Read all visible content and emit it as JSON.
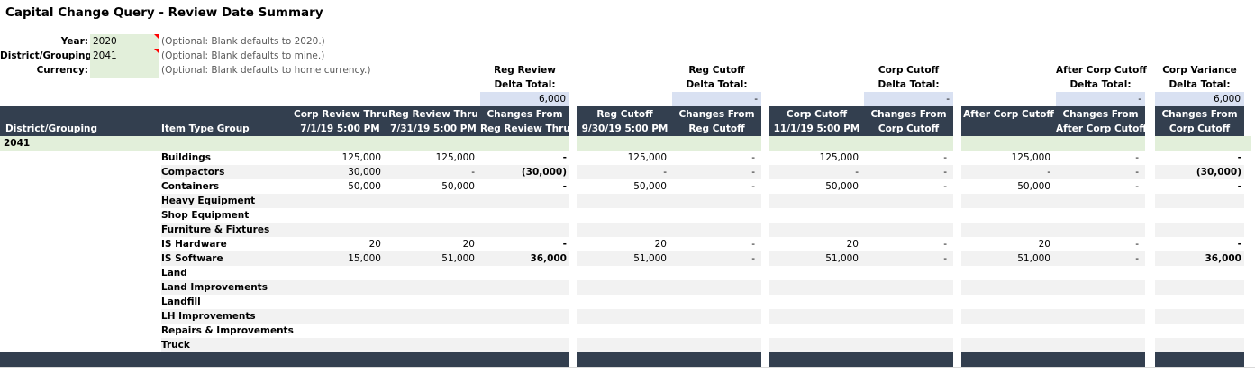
{
  "title": "Capital Change Query - Review Date Summary",
  "params": [
    {
      "label": "Year:",
      "value": "2020",
      "hint": "(Optional: Blank defaults to 2020.)",
      "has_comment": true
    },
    {
      "label": "District/Grouping:",
      "value": "2041",
      "hint": "(Optional: Blank defaults to mine.)",
      "has_comment": true
    },
    {
      "label": "Currency:",
      "value": "",
      "hint": "(Optional: Blank defaults to home currency.)",
      "has_comment": false
    }
  ],
  "deltas": [
    {
      "line1": "Reg Review",
      "line2": "Delta Total:",
      "total": "6,000"
    },
    {
      "line1": "Reg Cutoff",
      "line2": "Delta Total:",
      "total": "-"
    },
    {
      "line1": "Corp Cutoff",
      "line2": "Delta Total:",
      "total": "-"
    },
    {
      "line1": "After Corp Cutoff",
      "line2": "Delta Total:",
      "total": "-"
    },
    {
      "line1": "Corp Variance",
      "line2": "Delta Total:",
      "total": "6,000"
    }
  ],
  "headers": {
    "district": "District/Grouping",
    "item_type": "Item Type Group",
    "cols": [
      {
        "line1": "Corp Review Thru",
        "line2": "7/1/19 5:00 PM"
      },
      {
        "line1": "Reg Review Thru",
        "line2": "7/31/19 5:00 PM"
      },
      {
        "line1": "Changes From",
        "line2": "Reg Review Thru"
      },
      {
        "line1": "Reg Cutoff",
        "line2": "9/30/19 5:00 PM"
      },
      {
        "line1": "Changes From",
        "line2": "Reg Cutoff"
      },
      {
        "line1": "Corp Cutoff",
        "line2": "11/1/19 5:00 PM"
      },
      {
        "line1": "Changes From",
        "line2": "Corp Cutoff"
      },
      {
        "line1": "After Corp Cutoff",
        "line2": ""
      },
      {
        "line1": "Changes From",
        "line2": "After Corp Cutoff"
      },
      {
        "line1": "Changes From",
        "line2": "Corp Cutoff"
      }
    ]
  },
  "group": "2041",
  "rows": [
    {
      "item": "Buildings",
      "values": [
        "125,000",
        "125,000",
        "-",
        "125,000",
        "-",
        "125,000",
        "-",
        "125,000",
        "-",
        "-"
      ]
    },
    {
      "item": "Compactors",
      "values": [
        "30,000",
        "-",
        "(30,000)",
        "-",
        "-",
        "-",
        "-",
        "-",
        "-",
        "(30,000)"
      ]
    },
    {
      "item": "Containers",
      "values": [
        "50,000",
        "50,000",
        "-",
        "50,000",
        "-",
        "50,000",
        "-",
        "50,000",
        "-",
        "-"
      ]
    },
    {
      "item": "Heavy Equipment",
      "values": [
        "",
        "",
        "",
        "",
        "",
        "",
        "",
        "",
        "",
        ""
      ]
    },
    {
      "item": "Shop Equipment",
      "values": [
        "",
        "",
        "",
        "",
        "",
        "",
        "",
        "",
        "",
        ""
      ]
    },
    {
      "item": "Furniture & Fixtures",
      "values": [
        "",
        "",
        "",
        "",
        "",
        "",
        "",
        "",
        "",
        ""
      ]
    },
    {
      "item": "IS Hardware",
      "values": [
        "20",
        "20",
        "-",
        "20",
        "-",
        "20",
        "-",
        "20",
        "-",
        "-"
      ]
    },
    {
      "item": "IS Software",
      "values": [
        "15,000",
        "51,000",
        "36,000",
        "51,000",
        "-",
        "51,000",
        "-",
        "51,000",
        "-",
        "36,000"
      ]
    },
    {
      "item": "Land",
      "values": [
        "",
        "",
        "",
        "",
        "",
        "",
        "",
        "",
        "",
        ""
      ]
    },
    {
      "item": "Land Improvements",
      "values": [
        "",
        "",
        "",
        "",
        "",
        "",
        "",
        "",
        "",
        ""
      ]
    },
    {
      "item": "Landfill",
      "values": [
        "",
        "",
        "",
        "",
        "",
        "",
        "",
        "",
        "",
        ""
      ]
    },
    {
      "item": "LH Improvements",
      "values": [
        "",
        "",
        "",
        "",
        "",
        "",
        "",
        "",
        "",
        ""
      ]
    },
    {
      "item": "Repairs & Improvements",
      "values": [
        "",
        "",
        "",
        "",
        "",
        "",
        "",
        "",
        "",
        ""
      ]
    },
    {
      "item": "Truck",
      "values": [
        "",
        "",
        "",
        "",
        "",
        "",
        "",
        "",
        "",
        ""
      ]
    }
  ]
}
